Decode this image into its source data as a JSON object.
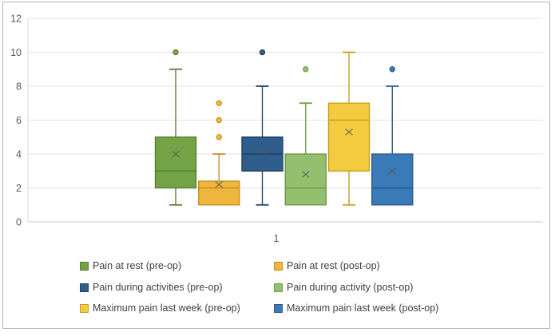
{
  "chart_data": {
    "type": "boxplot",
    "title": "",
    "xlabel": "",
    "ylabel": "",
    "categories": [
      "1"
    ],
    "ylim": [
      0,
      12
    ],
    "y_ticks": [
      0,
      2,
      4,
      6,
      8,
      10,
      12
    ],
    "grid": true,
    "legend_position": "bottom",
    "series": [
      {
        "name": "Pain at rest (pre-op)",
        "color": "#74a346",
        "border": "#5a7e33",
        "min": 1,
        "q1": 2,
        "median": 3,
        "q3": 5,
        "max": 9,
        "mean": 4.0,
        "outliers": [
          10
        ]
      },
      {
        "name": "Pain at rest (post-op)",
        "color": "#eeb63c",
        "border": "#c3901c",
        "min": 1,
        "q1": 1,
        "median": 2,
        "q3": 2.4,
        "max": 4,
        "mean": 2.2,
        "outliers": [
          5,
          6,
          7
        ]
      },
      {
        "name": "Pain during activities (pre-op)",
        "color": "#2f5e8c",
        "border": "#1f4265",
        "min": 1,
        "q1": 3,
        "median": 4,
        "q3": 5,
        "max": 8,
        "mean": 4.2,
        "outliers": [
          10
        ]
      },
      {
        "name": "Pain during activity (post-op)",
        "color": "#94bf6e",
        "border": "#6d9a46",
        "min": 1,
        "q1": 1,
        "median": 2,
        "q3": 4,
        "max": 7,
        "mean": 2.8,
        "outliers": [
          9
        ]
      },
      {
        "name": "Maximum pain last week (pre-op)",
        "color": "#f2cb3f",
        "border": "#c7a01e",
        "min": 1,
        "q1": 3,
        "median": 6,
        "q3": 7,
        "max": 10,
        "mean": 5.3,
        "outliers": []
      },
      {
        "name": "Maximum pain last week (post-op)",
        "color": "#3a7ab8",
        "border": "#2b5a88",
        "min": 1,
        "q1": 1,
        "median": 2,
        "q3": 4,
        "max": 8,
        "mean": 3.0,
        "outliers": [
          9
        ]
      }
    ]
  },
  "ui": {
    "frame_border": "#b4b4b4",
    "gridline": "#e3e3e3",
    "axis_line": "#c9c9c9",
    "y_axis_line": "#d9d9d9",
    "tick_text": "#595959",
    "legend_text": "#404040",
    "mean_marker": "#595959"
  }
}
